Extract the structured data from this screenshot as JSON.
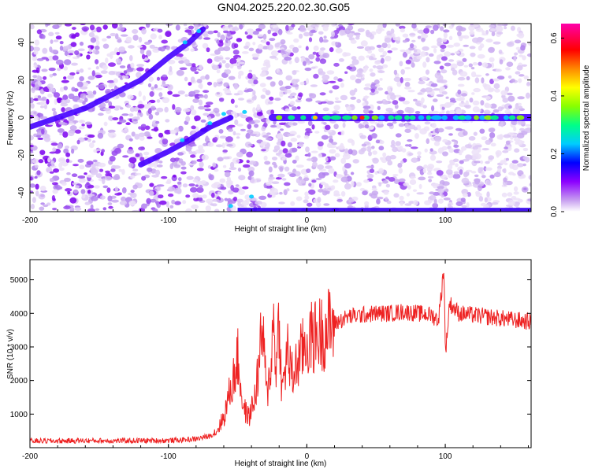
{
  "title": "GN04.2025.220.02.30.G05",
  "chart_data": [
    {
      "type": "heatmap",
      "xlabel": "Height of straight line (km)",
      "ylabel": "Frequency (Hz)",
      "xlim": [
        -200,
        162
      ],
      "ylim": [
        -50,
        50
      ],
      "xticks": [
        -200,
        -100,
        0,
        100
      ],
      "yticks": [
        -40,
        -20,
        0,
        20,
        40
      ],
      "colorbar": {
        "label": "Normalized spectral amplitude",
        "range": [
          0.0,
          0.65
        ],
        "ticks": [
          0.0,
          0.2,
          0.4,
          0.6
        ],
        "colors": [
          "#ffffff",
          "#c8a0f0",
          "#8c00ff",
          "#0000ff",
          "#00ccff",
          "#00ff88",
          "#88ff00",
          "#ffff00",
          "#ff8800",
          "#ff0000",
          "#ff00aa"
        ]
      },
      "ridges": [
        {
          "name_hint": "upper branch",
          "x": [
            -200,
            -160,
            -120,
            -100,
            -85,
            -75
          ],
          "y": [
            -5,
            5,
            20,
            32,
            40,
            47
          ]
        },
        {
          "name_hint": "lower branch",
          "x": [
            -120,
            -100,
            -85,
            -70,
            -55
          ],
          "y": [
            -25,
            -18,
            -12,
            -5,
            0
          ]
        },
        {
          "name_hint": "main line",
          "x": [
            -25,
            0,
            50,
            100,
            162
          ],
          "y": [
            0,
            0,
            0,
            0,
            0
          ]
        }
      ]
    },
    {
      "type": "line",
      "xlabel": "Height of straight line (km)",
      "ylabel": "SNR (10 * v/v)",
      "xlim": [
        -200,
        162
      ],
      "ylim": [
        0,
        5600
      ],
      "xticks": [
        -200,
        -100,
        0,
        100
      ],
      "yticks": [
        1000,
        2000,
        3000,
        4000,
        5000
      ],
      "color": "#ee2222",
      "series": [
        {
          "x": [
            -200,
            -180,
            -160,
            -140,
            -120,
            -100,
            -90,
            -80,
            -70,
            -65,
            -60,
            -56,
            -52,
            -50,
            -46,
            -42,
            -38,
            -35,
            -32,
            -29,
            -26,
            -24,
            -22,
            -20,
            -18,
            -16,
            -14,
            -12,
            -10,
            -8,
            -6,
            -4,
            -2,
            0,
            2,
            5,
            10,
            15,
            20,
            25,
            30,
            40,
            50,
            60,
            70,
            80,
            90,
            95,
            97,
            98,
            99,
            100,
            101,
            103,
            110,
            120,
            130,
            140,
            150,
            162
          ],
          "y": [
            200,
            200,
            210,
            205,
            210,
            215,
            230,
            260,
            350,
            500,
            900,
            1600,
            2200,
            2700,
            1200,
            900,
            1400,
            2300,
            3600,
            1500,
            2500,
            3800,
            2300,
            4000,
            1600,
            2200,
            3000,
            2300,
            2100,
            2400,
            2600,
            2800,
            3000,
            3100,
            3200,
            3300,
            3400,
            3550,
            3700,
            3800,
            3900,
            3950,
            4000,
            4000,
            4050,
            4000,
            3950,
            3800,
            4500,
            5000,
            5400,
            2900,
            3200,
            4300,
            4000,
            3950,
            3900,
            3850,
            3800,
            3750
          ]
        }
      ]
    }
  ]
}
